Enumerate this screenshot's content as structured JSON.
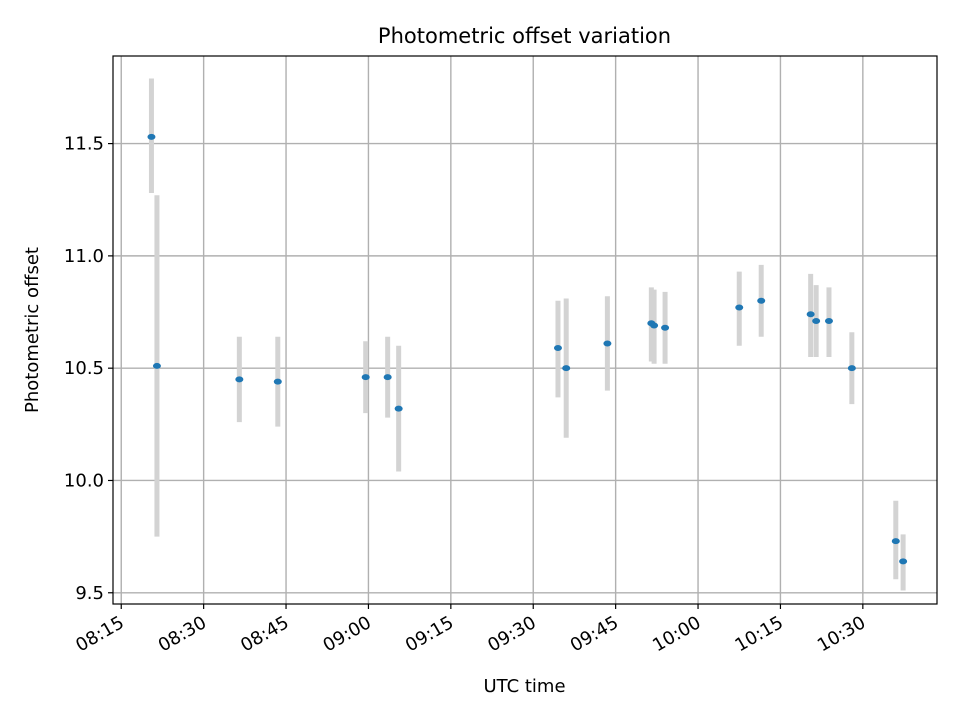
{
  "chart_data": {
    "type": "scatter",
    "title": "Photometric offset variation",
    "xlabel": "UTC time",
    "ylabel": "Photometric offset",
    "x_ticks": [
      "08:15",
      "08:30",
      "08:45",
      "09:00",
      "09:15",
      "09:30",
      "09:45",
      "10:00",
      "10:15",
      "10:30"
    ],
    "y_ticks": [
      "9.5",
      "10.0",
      "10.5",
      "11.0",
      "11.5"
    ],
    "xlim": [
      "08:13:30",
      "10:43:30"
    ],
    "ylim": [
      9.45,
      11.89
    ],
    "grid": true,
    "colors": {
      "points": "#1f77b4",
      "errorbars": "#d3d3d3",
      "grid": "#b0b0b0"
    },
    "points": [
      {
        "x": "08:20:30",
        "y": 11.53,
        "ylo": 11.28,
        "yhi": 11.79
      },
      {
        "x": "08:21:30",
        "y": 10.51,
        "ylo": 9.75,
        "yhi": 11.27
      },
      {
        "x": "08:36:30",
        "y": 10.45,
        "ylo": 10.26,
        "yhi": 10.64
      },
      {
        "x": "08:43:30",
        "y": 10.44,
        "ylo": 10.24,
        "yhi": 10.64
      },
      {
        "x": "08:59:30",
        "y": 10.46,
        "ylo": 10.3,
        "yhi": 10.62
      },
      {
        "x": "09:03:30",
        "y": 10.46,
        "ylo": 10.28,
        "yhi": 10.64
      },
      {
        "x": "09:05:30",
        "y": 10.32,
        "ylo": 10.04,
        "yhi": 10.6
      },
      {
        "x": "09:34:30",
        "y": 10.59,
        "ylo": 10.37,
        "yhi": 10.8
      },
      {
        "x": "09:36:00",
        "y": 10.5,
        "ylo": 10.19,
        "yhi": 10.81
      },
      {
        "x": "09:43:30",
        "y": 10.61,
        "ylo": 10.4,
        "yhi": 10.82
      },
      {
        "x": "09:51:30",
        "y": 10.7,
        "ylo": 10.53,
        "yhi": 10.86
      },
      {
        "x": "09:52:00",
        "y": 10.69,
        "ylo": 10.52,
        "yhi": 10.85
      },
      {
        "x": "09:54:00",
        "y": 10.68,
        "ylo": 10.52,
        "yhi": 10.84
      },
      {
        "x": "10:07:30",
        "y": 10.77,
        "ylo": 10.6,
        "yhi": 10.93
      },
      {
        "x": "10:11:30",
        "y": 10.8,
        "ylo": 10.64,
        "yhi": 10.96
      },
      {
        "x": "10:20:30",
        "y": 10.74,
        "ylo": 10.55,
        "yhi": 10.92
      },
      {
        "x": "10:21:30",
        "y": 10.71,
        "ylo": 10.55,
        "yhi": 10.87
      },
      {
        "x": "10:23:50",
        "y": 10.71,
        "ylo": 10.55,
        "yhi": 10.86
      },
      {
        "x": "10:28:00",
        "y": 10.5,
        "ylo": 10.34,
        "yhi": 10.66
      },
      {
        "x": "10:36:00",
        "y": 9.73,
        "ylo": 9.56,
        "yhi": 9.91
      },
      {
        "x": "10:37:20",
        "y": 9.64,
        "ylo": 9.51,
        "yhi": 9.76
      }
    ]
  }
}
